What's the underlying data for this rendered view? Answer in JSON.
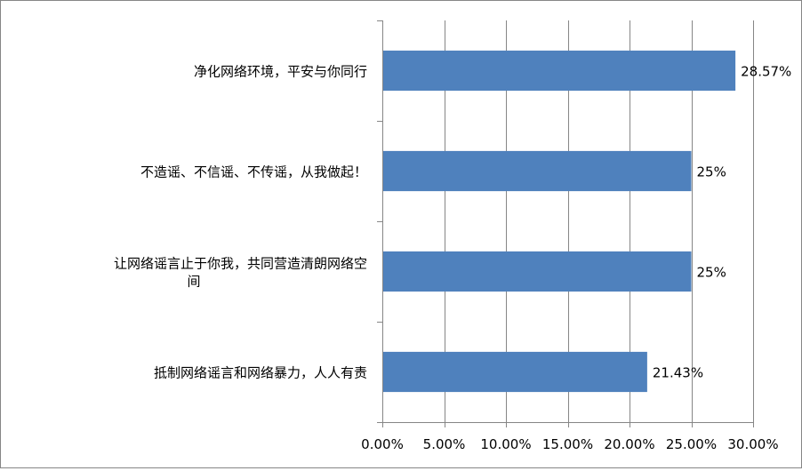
{
  "chart_data": {
    "type": "bar",
    "orientation": "horizontal",
    "categories": [
      [
        "净化网络环境，平安与你同行"
      ],
      [
        "不造谣、不信谣、不传谣，从我做起！"
      ],
      [
        "让网络谣言止于你我，共同营造清朗网络空",
        "间"
      ],
      [
        "抵制网络谣言和网络暴力，人人有责"
      ]
    ],
    "values": [
      28.57,
      25,
      25,
      21.43
    ],
    "value_labels": [
      "28.57%",
      "25%",
      "25%",
      "21.43%"
    ],
    "xlim": [
      0,
      30
    ],
    "x_ticks": [
      0,
      5,
      10,
      15,
      20,
      25,
      30
    ],
    "x_tick_labels": [
      "0.00%",
      "5.00%",
      "10.00%",
      "15.00%",
      "20.00%",
      "25.00%",
      "30.00%"
    ],
    "grid": "vertical",
    "legend": "none",
    "colors": {
      "bar": "#4F81BD",
      "grid": "#868686",
      "axis": "#868686"
    }
  }
}
